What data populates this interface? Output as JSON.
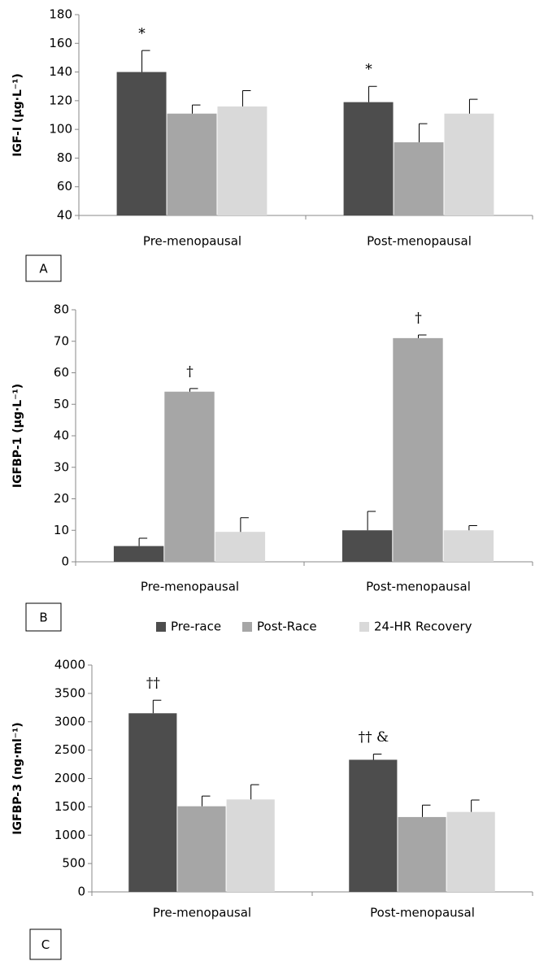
{
  "chart_data": [
    {
      "type": "bar",
      "y_label": "IGF-I (µg·L⁻¹)",
      "panel_label": "A",
      "categories": [
        "Pre-menopausal",
        "Post-menopausal"
      ],
      "ylim": [
        40,
        180
      ],
      "yticks": [
        40,
        60,
        80,
        100,
        120,
        140,
        160,
        180
      ],
      "series": [
        {
          "color": "#4d4d4d",
          "values": [
            140,
            119
          ],
          "errors": [
            15,
            11
          ],
          "annotations": [
            "*",
            "*"
          ]
        },
        {
          "color": "#a6a6a6",
          "values": [
            111,
            91
          ],
          "errors": [
            6,
            13
          ]
        },
        {
          "color": "#d9d9d9",
          "values": [
            116,
            111
          ],
          "errors": [
            11,
            10
          ]
        }
      ]
    },
    {
      "type": "bar",
      "y_label": "IGFBP-1 (µg·L⁻¹)",
      "panel_label": "B",
      "categories": [
        "Pre-menopausal",
        "Post-menopausal"
      ],
      "ylim": [
        0,
        80
      ],
      "yticks": [
        0,
        10,
        20,
        30,
        40,
        50,
        60,
        70,
        80
      ],
      "legend": "bottom",
      "series": [
        {
          "name": "Pre-race",
          "color": "#4d4d4d",
          "values": [
            5,
            10
          ],
          "errors": [
            2.5,
            6
          ]
        },
        {
          "name": "Post-Race",
          "color": "#a6a6a6",
          "values": [
            54,
            71
          ],
          "errors": [
            1,
            1
          ],
          "annotations": [
            "†",
            "†"
          ]
        },
        {
          "name": "24-HR Recovery",
          "color": "#d9d9d9",
          "values": [
            9.5,
            10
          ],
          "errors": [
            4.5,
            1.5
          ]
        }
      ]
    },
    {
      "type": "bar",
      "y_label": "IGFBP-3 (ng·ml⁻¹)",
      "panel_label": "C",
      "categories": [
        "Pre-menopausal",
        "Post-menopausal"
      ],
      "ylim": [
        0,
        4000
      ],
      "yticks": [
        0,
        500,
        1000,
        1500,
        2000,
        2500,
        3000,
        3500,
        4000
      ],
      "series": [
        {
          "color": "#4d4d4d",
          "values": [
            3150,
            2330
          ],
          "errors": [
            230,
            100
          ],
          "annotations": [
            "††",
            "††  &"
          ]
        },
        {
          "color": "#a6a6a6",
          "values": [
            1510,
            1320
          ],
          "errors": [
            180,
            210
          ]
        },
        {
          "color": "#d9d9d9",
          "values": [
            1630,
            1410
          ],
          "errors": [
            260,
            210
          ]
        }
      ]
    }
  ]
}
